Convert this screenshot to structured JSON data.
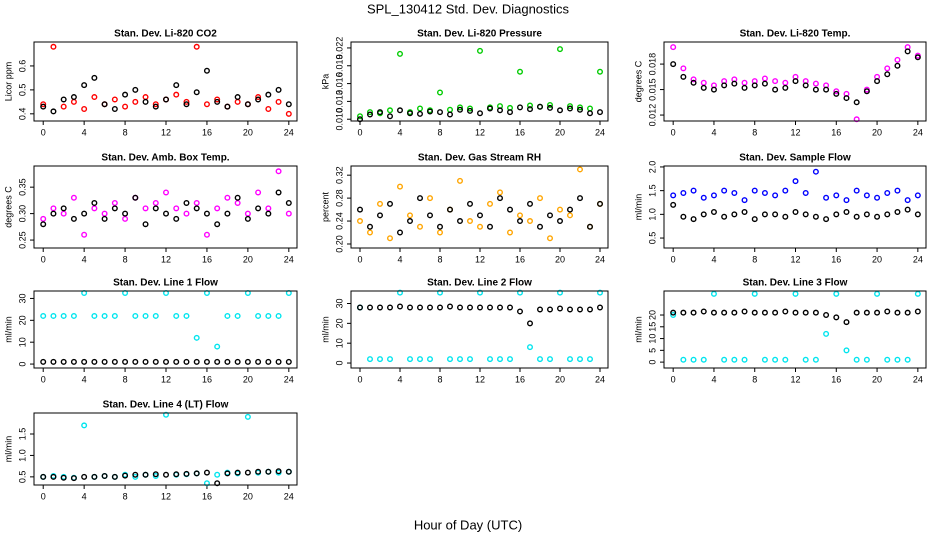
{
  "title": "SPL_130412  Std. Dev. Diagnostics",
  "xlabel": "Hour of Day (UTC)",
  "chart_data": [
    {
      "type": "scatter",
      "title": "Stan. Dev. Li-820 CO2",
      "ylabel": "Licor ppm",
      "x": [
        0,
        1,
        2,
        3,
        4,
        5,
        6,
        7,
        8,
        9,
        10,
        11,
        12,
        13,
        14,
        15,
        16,
        17,
        18,
        19,
        20,
        21,
        22,
        23,
        24
      ],
      "xlim": [
        -0.9,
        24.8
      ],
      "xticks": [
        0,
        4,
        8,
        12,
        16,
        20,
        24
      ],
      "ylim": [
        0.37,
        0.7
      ],
      "yticks": [
        0.4,
        0.5,
        0.6
      ],
      "series": [
        {
          "color": "#ff0000",
          "values": [
            0.44,
            0.68,
            0.43,
            0.45,
            0.42,
            0.47,
            0.44,
            0.46,
            0.43,
            0.45,
            0.47,
            0.44,
            0.46,
            0.48,
            0.45,
            0.68,
            0.44,
            0.46,
            0.43,
            0.45,
            0.44,
            0.47,
            0.42,
            0.45,
            0.4
          ]
        },
        {
          "color": "#000000",
          "values": [
            0.43,
            0.41,
            0.46,
            0.47,
            0.52,
            0.55,
            0.44,
            0.42,
            0.48,
            0.5,
            0.45,
            0.43,
            0.46,
            0.52,
            0.44,
            0.49,
            0.58,
            0.45,
            0.43,
            0.47,
            0.44,
            0.46,
            0.48,
            0.5,
            0.44
          ]
        }
      ]
    },
    {
      "type": "scatter",
      "title": "Stan. Dev. Li-820 Pressure",
      "ylabel": "kPa",
      "x": [
        0,
        1,
        2,
        3,
        4,
        5,
        6,
        7,
        8,
        9,
        10,
        11,
        12,
        13,
        14,
        15,
        16,
        17,
        18,
        19,
        20,
        21,
        22,
        23,
        24
      ],
      "xlim": [
        -0.9,
        24.8
      ],
      "xticks": [
        0,
        4,
        8,
        12,
        16,
        20,
        24
      ],
      "ylim": [
        0.0097,
        0.023
      ],
      "yticks": [
        {
          "value": 0.01,
          "label": "0.010"
        },
        0.013,
        0.016,
        0.019,
        0.022
      ],
      "series": [
        {
          "color": "#00cc00",
          "values": [
            0.0105,
            0.0112,
            0.011,
            0.0115,
            0.021,
            0.0112,
            0.0118,
            0.0115,
            0.0145,
            0.0116,
            0.012,
            0.0118,
            0.0215,
            0.012,
            0.0122,
            0.0119,
            0.018,
            0.0123,
            0.0121,
            0.0124,
            0.0218,
            0.0122,
            0.012,
            0.0118,
            0.018
          ]
        },
        {
          "color": "#000000",
          "values": [
            0.01,
            0.0108,
            0.0112,
            0.0105,
            0.0115,
            0.011,
            0.0109,
            0.0113,
            0.0112,
            0.0108,
            0.0116,
            0.0114,
            0.011,
            0.0118,
            0.0115,
            0.0112,
            0.012,
            0.0117,
            0.0121,
            0.0119,
            0.0115,
            0.0118,
            0.0116,
            0.011,
            0.0112
          ]
        }
      ]
    },
    {
      "type": "scatter",
      "title": "Stan. Dev. Li-820 Temp.",
      "ylabel": "degrees C",
      "x": [
        0,
        1,
        2,
        3,
        4,
        5,
        6,
        7,
        8,
        9,
        10,
        11,
        12,
        13,
        14,
        15,
        16,
        17,
        18,
        19,
        20,
        21,
        22,
        23,
        24
      ],
      "xlim": [
        -0.9,
        24.8
      ],
      "xticks": [
        0,
        4,
        8,
        12,
        16,
        20,
        24
      ],
      "ylim": [
        0.0113,
        0.0206
      ],
      "yticks": [
        0.012,
        0.015,
        0.018
      ],
      "series": [
        {
          "color": "#ff00ff",
          "values": [
            0.02,
            0.0175,
            0.0162,
            0.0158,
            0.0155,
            0.016,
            0.0162,
            0.0158,
            0.016,
            0.0163,
            0.016,
            0.0158,
            0.0165,
            0.016,
            0.0157,
            0.0155,
            0.0148,
            0.0145,
            0.0115,
            0.015,
            0.0165,
            0.0175,
            0.0185,
            0.02,
            0.019
          ]
        },
        {
          "color": "#000000",
          "values": [
            0.018,
            0.0165,
            0.0158,
            0.0152,
            0.015,
            0.0155,
            0.0157,
            0.0152,
            0.0155,
            0.0157,
            0.015,
            0.0152,
            0.016,
            0.0155,
            0.015,
            0.015,
            0.0145,
            0.014,
            0.0135,
            0.0148,
            0.016,
            0.0168,
            0.0178,
            0.0195,
            0.0188
          ]
        }
      ]
    },
    {
      "type": "scatter",
      "title": "Stan. Dev. Amb. Box Temp.",
      "ylabel": "degrees C",
      "x": [
        0,
        1,
        2,
        3,
        4,
        5,
        6,
        7,
        8,
        9,
        10,
        11,
        12,
        13,
        14,
        15,
        16,
        17,
        18,
        19,
        20,
        21,
        22,
        23,
        24
      ],
      "xlim": [
        -0.9,
        24.8
      ],
      "xticks": [
        0,
        4,
        8,
        12,
        16,
        20,
        24
      ],
      "ylim": [
        0.235,
        0.39
      ],
      "yticks": [
        0.25,
        {
          "value": 0.3,
          "label": "0.30"
        },
        0.35
      ],
      "series": [
        {
          "color": "#ff00ff",
          "values": [
            0.29,
            0.31,
            0.3,
            0.33,
            0.26,
            0.31,
            0.3,
            0.32,
            0.29,
            0.33,
            0.31,
            0.32,
            0.34,
            0.31,
            0.3,
            0.32,
            0.26,
            0.31,
            0.33,
            0.32,
            0.3,
            0.34,
            0.31,
            0.38,
            0.3
          ]
        },
        {
          "color": "#000000",
          "values": [
            0.28,
            0.3,
            0.31,
            0.29,
            0.3,
            0.32,
            0.29,
            0.31,
            0.3,
            0.33,
            0.28,
            0.31,
            0.3,
            0.29,
            0.32,
            0.31,
            0.3,
            0.28,
            0.3,
            0.33,
            0.29,
            0.31,
            0.3,
            0.34,
            0.32
          ]
        }
      ]
    },
    {
      "type": "scatter",
      "title": "Stan. Dev. Gas Stream RH",
      "ylabel": "percent",
      "x": [
        0,
        1,
        2,
        3,
        4,
        5,
        6,
        7,
        8,
        9,
        10,
        11,
        12,
        13,
        14,
        15,
        16,
        17,
        18,
        19,
        20,
        21,
        22,
        23,
        24
      ],
      "xlim": [
        -0.9,
        24.8
      ],
      "xticks": [
        0,
        4,
        8,
        12,
        16,
        20,
        24
      ],
      "ylim": [
        0.193,
        0.336
      ],
      "yticks": [
        {
          "value": 0.2,
          "label": "0.20"
        },
        0.24,
        0.28,
        0.32
      ],
      "series": [
        {
          "color": "#ffa500",
          "values": [
            0.24,
            0.22,
            0.27,
            0.21,
            0.3,
            0.25,
            0.23,
            0.28,
            0.22,
            0.26,
            0.31,
            0.24,
            0.23,
            0.27,
            0.29,
            0.22,
            0.25,
            0.24,
            0.28,
            0.21,
            0.26,
            0.25,
            0.33,
            0.23,
            0.27
          ]
        },
        {
          "color": "#000000",
          "values": [
            0.26,
            0.23,
            0.25,
            0.27,
            0.22,
            0.24,
            0.28,
            0.25,
            0.23,
            0.26,
            0.24,
            0.27,
            0.25,
            0.23,
            0.28,
            0.26,
            0.24,
            0.27,
            0.23,
            0.25,
            0.24,
            0.26,
            0.28,
            0.23,
            0.27
          ]
        }
      ]
    },
    {
      "type": "scatter",
      "title": "Stan. Dev. Sample Flow",
      "ylabel": "ml/min",
      "x": [
        0,
        1,
        2,
        3,
        4,
        5,
        6,
        7,
        8,
        9,
        10,
        11,
        12,
        13,
        14,
        15,
        16,
        17,
        18,
        19,
        20,
        21,
        22,
        23,
        24
      ],
      "xlim": [
        -0.9,
        24.8
      ],
      "xticks": [
        0,
        4,
        8,
        12,
        16,
        20,
        24
      ],
      "ylim": [
        0.29,
        2.02
      ],
      "yticks": [
        0.5,
        {
          "value": 1.0,
          "label": "1.0"
        },
        1.5,
        {
          "value": 2.0,
          "label": "2.0"
        }
      ],
      "series": [
        {
          "color": "#0000ff",
          "values": [
            1.4,
            1.45,
            1.5,
            1.35,
            1.4,
            1.5,
            1.45,
            1.3,
            1.5,
            1.45,
            1.4,
            1.5,
            1.7,
            1.45,
            1.9,
            1.35,
            1.4,
            1.3,
            1.5,
            1.4,
            1.35,
            1.45,
            1.5,
            1.3,
            1.4
          ]
        },
        {
          "color": "#000000",
          "values": [
            1.2,
            0.95,
            0.9,
            1.0,
            1.05,
            0.95,
            1.0,
            1.05,
            0.9,
            1.0,
            1.0,
            0.95,
            1.05,
            1.0,
            0.95,
            0.9,
            1.0,
            1.05,
            0.95,
            1.0,
            0.95,
            1.0,
            1.05,
            1.1,
            1.0
          ]
        }
      ]
    },
    {
      "type": "scatter",
      "title": "Stan. Dev. Line 1 Flow",
      "ylabel": "ml/min",
      "x": [
        0,
        1,
        2,
        3,
        4,
        5,
        6,
        7,
        8,
        9,
        10,
        11,
        12,
        13,
        14,
        15,
        16,
        17,
        18,
        19,
        20,
        21,
        22,
        23,
        24
      ],
      "xlim": [
        -0.9,
        24.8
      ],
      "xticks": [
        0,
        4,
        8,
        12,
        16,
        20,
        24
      ],
      "ylim": [
        -1.8,
        33.4
      ],
      "yticks": [
        0,
        10,
        20,
        30
      ],
      "series": [
        {
          "color": "#00e5ee",
          "values": [
            22,
            22,
            22,
            22,
            32.5,
            22,
            22,
            22,
            32.5,
            22,
            22,
            22,
            32.5,
            22,
            22,
            12,
            32.5,
            8,
            22,
            22,
            32.5,
            22,
            22,
            22,
            32.5
          ]
        },
        {
          "color": "#000000",
          "values": [
            1,
            1,
            1,
            1,
            1,
            1,
            1,
            1,
            1,
            1,
            1,
            1,
            1,
            1,
            1,
            1,
            1,
            1,
            1,
            1,
            1,
            1,
            1,
            1,
            1
          ]
        }
      ]
    },
    {
      "type": "scatter",
      "title": "Stan. Dev. Line 2 Flow",
      "ylabel": "ml/min",
      "x": [
        0,
        1,
        2,
        3,
        4,
        5,
        6,
        7,
        8,
        9,
        10,
        11,
        12,
        13,
        14,
        15,
        16,
        17,
        18,
        19,
        20,
        21,
        22,
        23,
        24
      ],
      "xlim": [
        -0.9,
        24.8
      ],
      "xticks": [
        0,
        4,
        8,
        12,
        16,
        20,
        24
      ],
      "ylim": [
        -2.5,
        36.3
      ],
      "yticks": [
        0,
        10,
        20,
        30
      ],
      "series": [
        {
          "color": "#00e5ee",
          "values": [
            28,
            2,
            2,
            2,
            35.5,
            2,
            2,
            2,
            35.5,
            2,
            2,
            2,
            35.5,
            2,
            2,
            2,
            35.5,
            8,
            2,
            2,
            35.5,
            2,
            2,
            2,
            35.5
          ]
        },
        {
          "color": "#000000",
          "values": [
            28,
            28,
            28,
            28,
            28.5,
            28,
            28,
            28,
            28,
            28.5,
            28,
            28,
            28,
            28,
            28,
            28,
            26,
            20,
            27,
            27,
            27.5,
            27,
            27,
            27,
            28
          ]
        }
      ]
    },
    {
      "type": "scatter",
      "title": "Stan. Dev. Line 3 Flow",
      "ylabel": "ml/min",
      "x": [
        0,
        1,
        2,
        3,
        4,
        5,
        6,
        7,
        8,
        9,
        10,
        11,
        12,
        13,
        14,
        15,
        16,
        17,
        18,
        19,
        20,
        21,
        22,
        23,
        24
      ],
      "xlim": [
        -0.9,
        24.8
      ],
      "xticks": [
        0,
        4,
        8,
        12,
        16,
        20,
        24
      ],
      "ylim": [
        -2.5,
        30.2
      ],
      "yticks": [
        0,
        5,
        10,
        15,
        20
      ],
      "series": [
        {
          "color": "#00e5ee",
          "values": [
            20,
            1,
            1,
            1,
            29,
            1,
            1,
            1,
            29,
            1,
            1,
            1,
            29,
            1,
            1,
            12,
            29,
            5,
            1,
            1,
            29,
            1,
            1,
            1,
            29
          ]
        },
        {
          "color": "#000000",
          "values": [
            21,
            21,
            21,
            21.5,
            21,
            21,
            21,
            21.5,
            21,
            21,
            21,
            21.5,
            21,
            21,
            21,
            20,
            19,
            17,
            21,
            21,
            21,
            21.5,
            21,
            21,
            21.5
          ]
        }
      ]
    },
    {
      "type": "scatter",
      "title": "Stan. Dev. Line 4 (LT) Flow",
      "ylabel": "ml/min",
      "x": [
        0,
        1,
        2,
        3,
        4,
        5,
        6,
        7,
        8,
        9,
        10,
        11,
        12,
        13,
        14,
        15,
        16,
        17,
        18,
        19,
        20,
        21,
        22,
        23,
        24
      ],
      "xlim": [
        -0.9,
        24.8
      ],
      "xticks": [
        0,
        4,
        8,
        12,
        16,
        20,
        24
      ],
      "ylim": [
        0.31,
        1.99
      ],
      "yticks": [
        0.5,
        {
          "value": 1.0,
          "label": "1.0"
        },
        1.5
      ],
      "series": [
        {
          "color": "#00e5ee",
          "values": [
            0.5,
            0.52,
            0.5,
            0.48,
            1.7,
            0.5,
            0.52,
            0.5,
            0.55,
            0.5,
            0.55,
            0.52,
            1.95,
            0.55,
            0.56,
            0.58,
            0.35,
            0.55,
            0.6,
            0.58,
            1.9,
            0.6,
            0.62,
            0.6,
            0.62
          ]
        },
        {
          "color": "#000000",
          "values": [
            0.5,
            0.5,
            0.48,
            0.47,
            0.5,
            0.5,
            0.52,
            0.5,
            0.53,
            0.55,
            0.55,
            0.56,
            0.55,
            0.56,
            0.57,
            0.58,
            0.6,
            0.35,
            0.58,
            0.6,
            0.6,
            0.62,
            0.62,
            0.63,
            0.62
          ]
        }
      ]
    }
  ]
}
